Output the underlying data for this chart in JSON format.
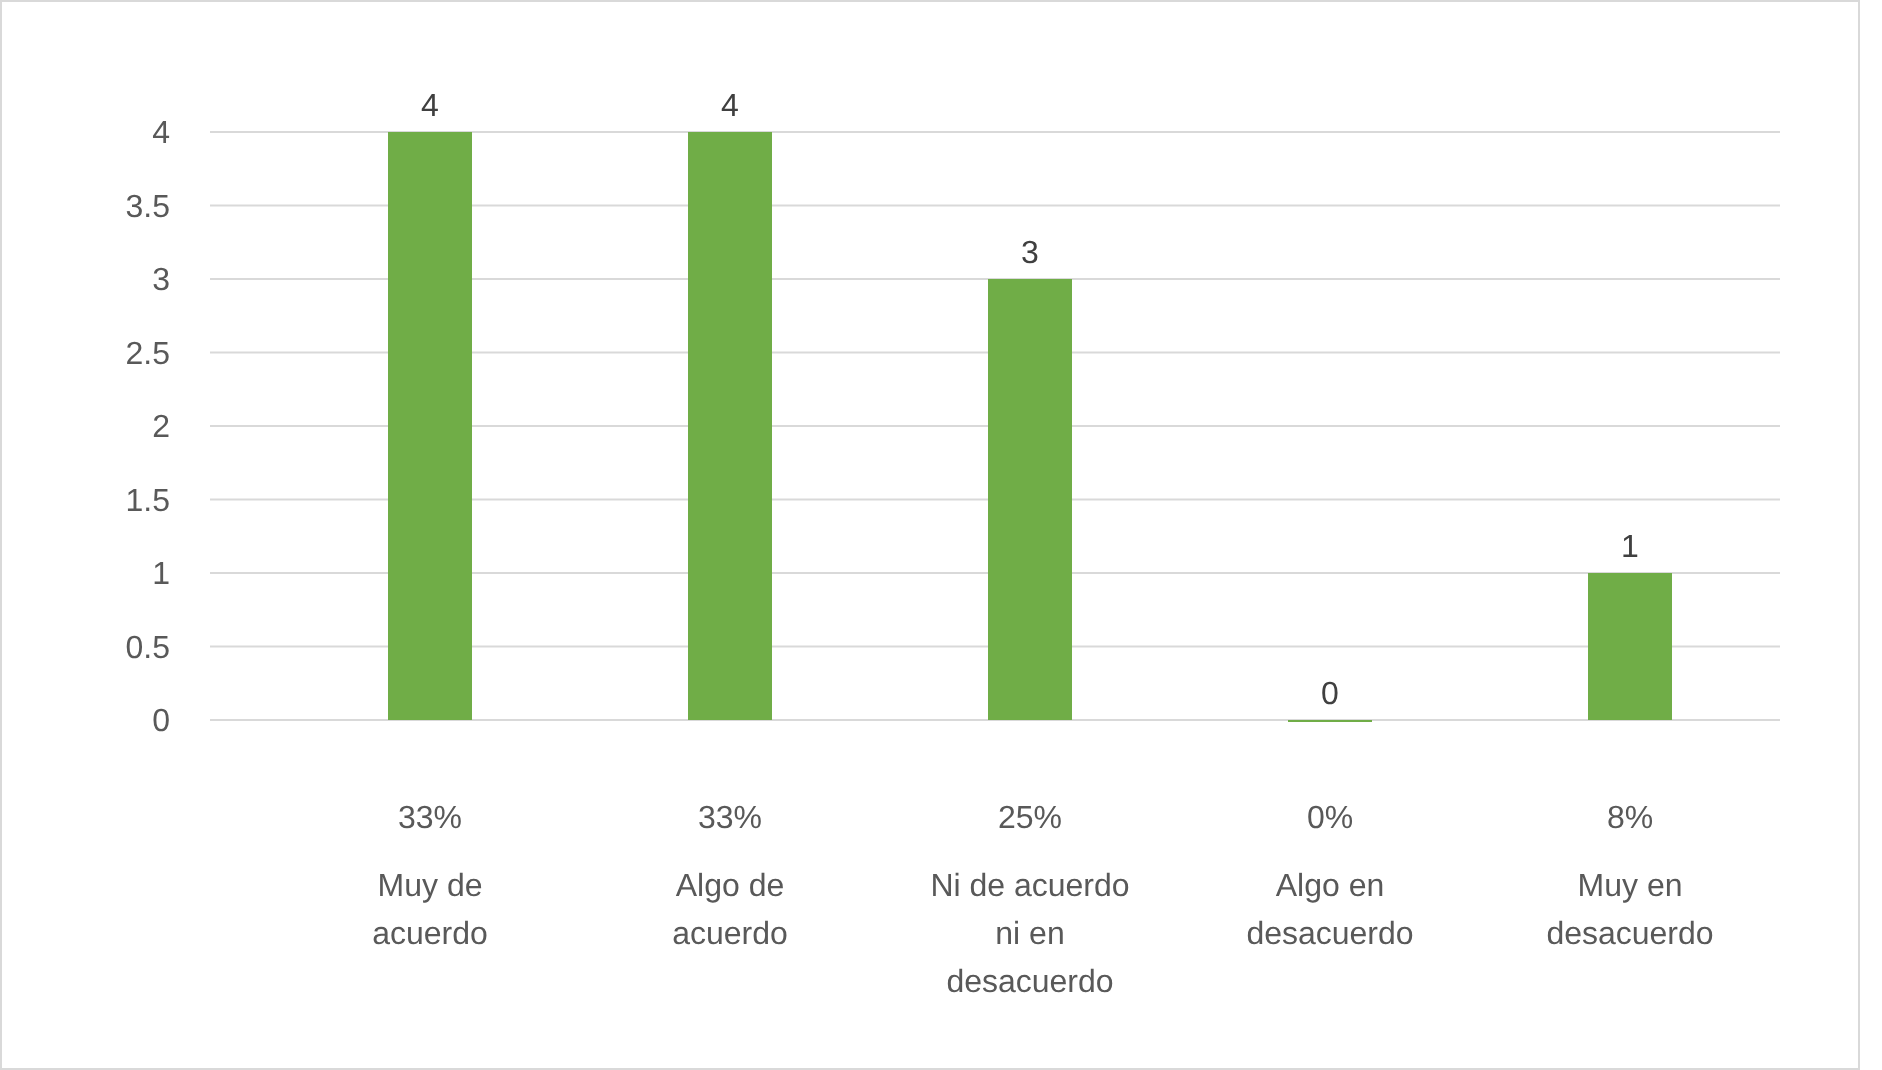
{
  "chart_data": {
    "type": "bar",
    "categories": [
      "Muy de acuerdo",
      "Algo de acuerdo",
      "Ni de acuerdo ni en desacuerdo",
      "Algo en desacuerdo",
      "Muy en desacuerdo"
    ],
    "values": [
      4,
      4,
      3,
      0,
      1
    ],
    "color": "#70ad47",
    "ylim": [
      0,
      4
    ],
    "yticks": [
      0,
      0.5,
      1,
      1.5,
      2,
      2.5,
      3,
      3.5,
      4
    ],
    "grid": "y",
    "data_labels": true,
    "annotations": [
      "33%",
      "33%",
      "25%",
      "0%",
      "8%"
    ]
  }
}
